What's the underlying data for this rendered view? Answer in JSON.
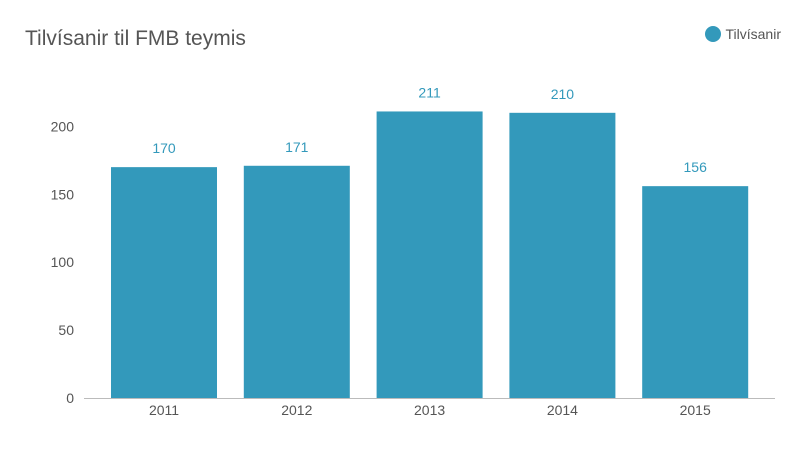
{
  "chart_data": {
    "type": "bar",
    "title": "Tilvísanir til FMB teymis",
    "categories": [
      "2011",
      "2012",
      "2013",
      "2014",
      "2015"
    ],
    "series": [
      {
        "name": "Tilvísanir",
        "values": [
          170,
          171,
          211,
          210,
          156
        ]
      }
    ],
    "data_labels": [
      "170",
      "171",
      "211",
      "210",
      "156"
    ],
    "y_ticks": [
      0,
      50,
      100,
      150,
      200
    ],
    "ylim": [
      0,
      200
    ],
    "xlabel": "",
    "ylabel": "",
    "grid": false,
    "legend_position": "top-right",
    "bar_color": "#3399bb",
    "label_color": "#3399bb",
    "axis_color": "#bbbbbb"
  }
}
